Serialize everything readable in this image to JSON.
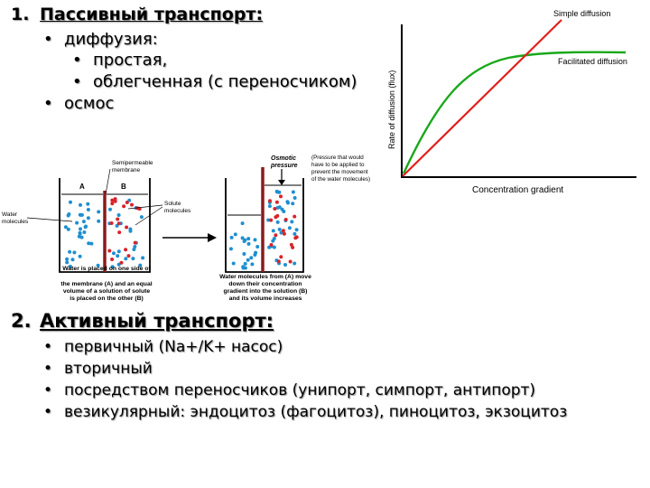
{
  "section1": {
    "number": "1.",
    "title": "Пассивный транспорт:",
    "items": [
      "диффузия:",
      "простая,",
      "облегченная (с переносчиком)",
      "осмос"
    ],
    "bullet": "•"
  },
  "section2": {
    "number": "2.",
    "title": "Активный транспорт:",
    "items": [
      "первичный (Na+/K+ насос)",
      "вторичный",
      "посредством переносчиков (унипорт, симпорт, антипорт)",
      "везикулярный: эндоцитоз (фагоцитоз), пиноцитоз, экзоцитоз"
    ]
  },
  "graph": {
    "simple_label": "Simple diffusion",
    "facilitated_label": "Facilitated diffusion",
    "y_axis_label": "Rate of diffusion (flux)",
    "x_axis_label": "Concentration gradient",
    "simple_color": "#e0201c",
    "facilitated_color": "#1aa81a"
  },
  "osmosis": {
    "membrane_label_1": "Semipermeable",
    "membrane_label_2": "membrane",
    "side_a": "A",
    "side_b": "B",
    "water_label_1": "Water",
    "water_label_2": "molecules",
    "solute_label_1": "Solute",
    "solute_label_2": "molecules",
    "pressure_label_1": "Osmotic",
    "pressure_label_2": "pressure",
    "pressure_note": [
      "(Pressure that would",
      "have to be applied to",
      "prevent the movement",
      "of the water molecules)"
    ],
    "caption_left": [
      "Water is placed on one side of",
      "the membrane (A) and an equal",
      "volume of a solution of solute",
      "is placed on the other (B)"
    ],
    "caption_right": [
      "Water molecules from (A) move",
      "down their concentration",
      "gradient into the solution (B)",
      "and its volume increases"
    ],
    "water_color": "#1f8fd0",
    "solute_color": "#d8242a"
  }
}
